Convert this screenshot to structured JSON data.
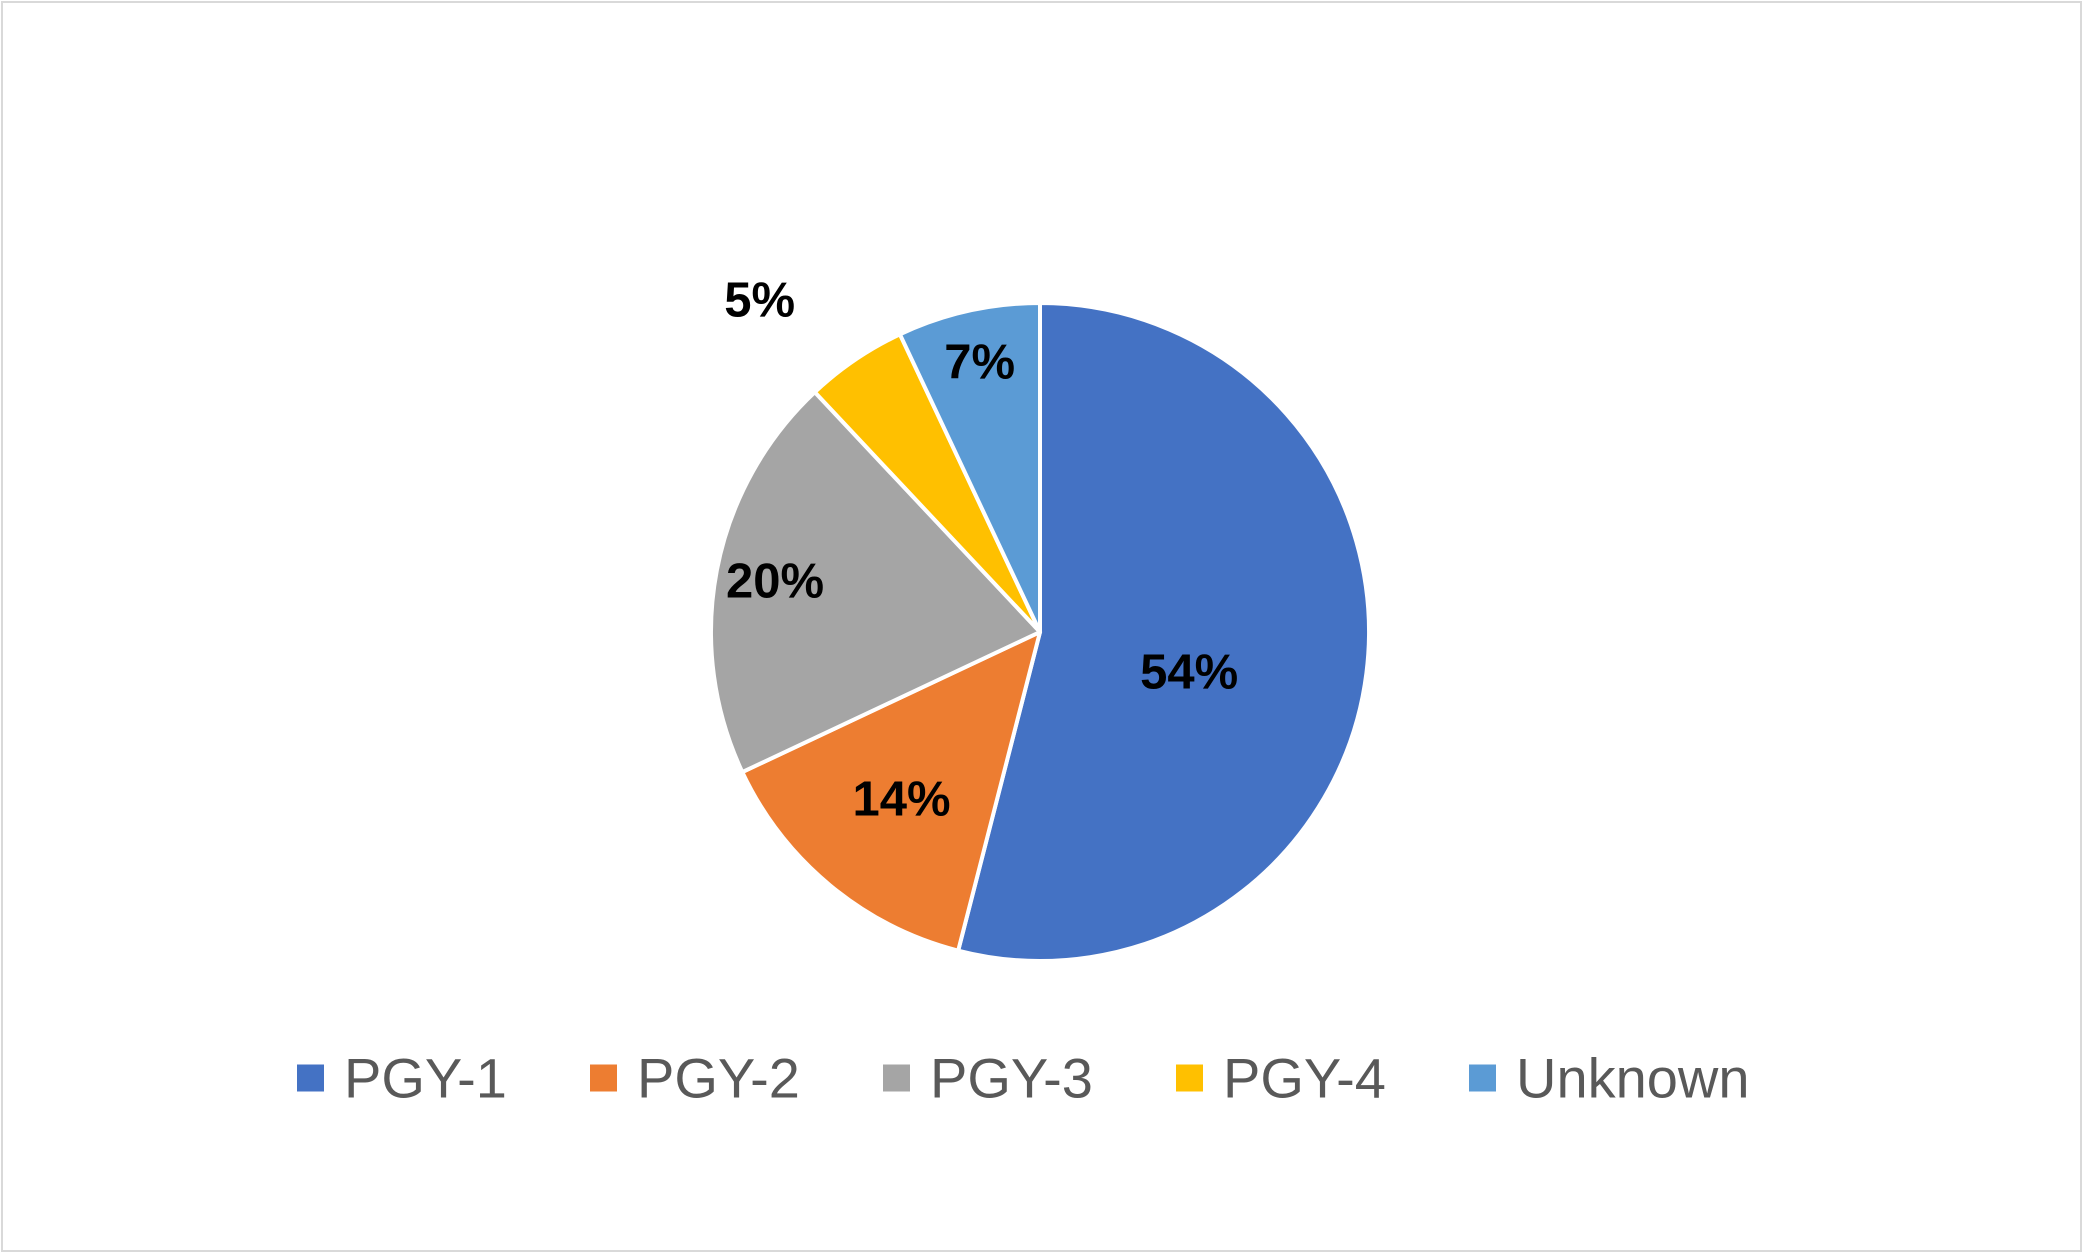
{
  "chart_data": {
    "type": "pie",
    "title": "",
    "categories": [
      "PGY-1",
      "PGY-2",
      "PGY-3",
      "PGY-4",
      "Unknown"
    ],
    "values": [
      54,
      14,
      20,
      5,
      7
    ],
    "labels": [
      "54%",
      "14%",
      "20%",
      "5%",
      "7%"
    ],
    "colors": [
      "#4472C4",
      "#ED7D31",
      "#A5A5A5",
      "#FFC000",
      "#5B9BD5"
    ],
    "start_angle_deg": 0,
    "direction": "clockwise",
    "legend": {
      "position": "bottom",
      "items": [
        {
          "name": "PGY-1",
          "color": "#4472C4"
        },
        {
          "name": "PGY-2",
          "color": "#ED7D31"
        },
        {
          "name": "PGY-3",
          "color": "#A5A5A5"
        },
        {
          "name": "PGY-4",
          "color": "#FFC000"
        },
        {
          "name": "Unknown",
          "color": "#5B9BD5"
        }
      ]
    }
  }
}
